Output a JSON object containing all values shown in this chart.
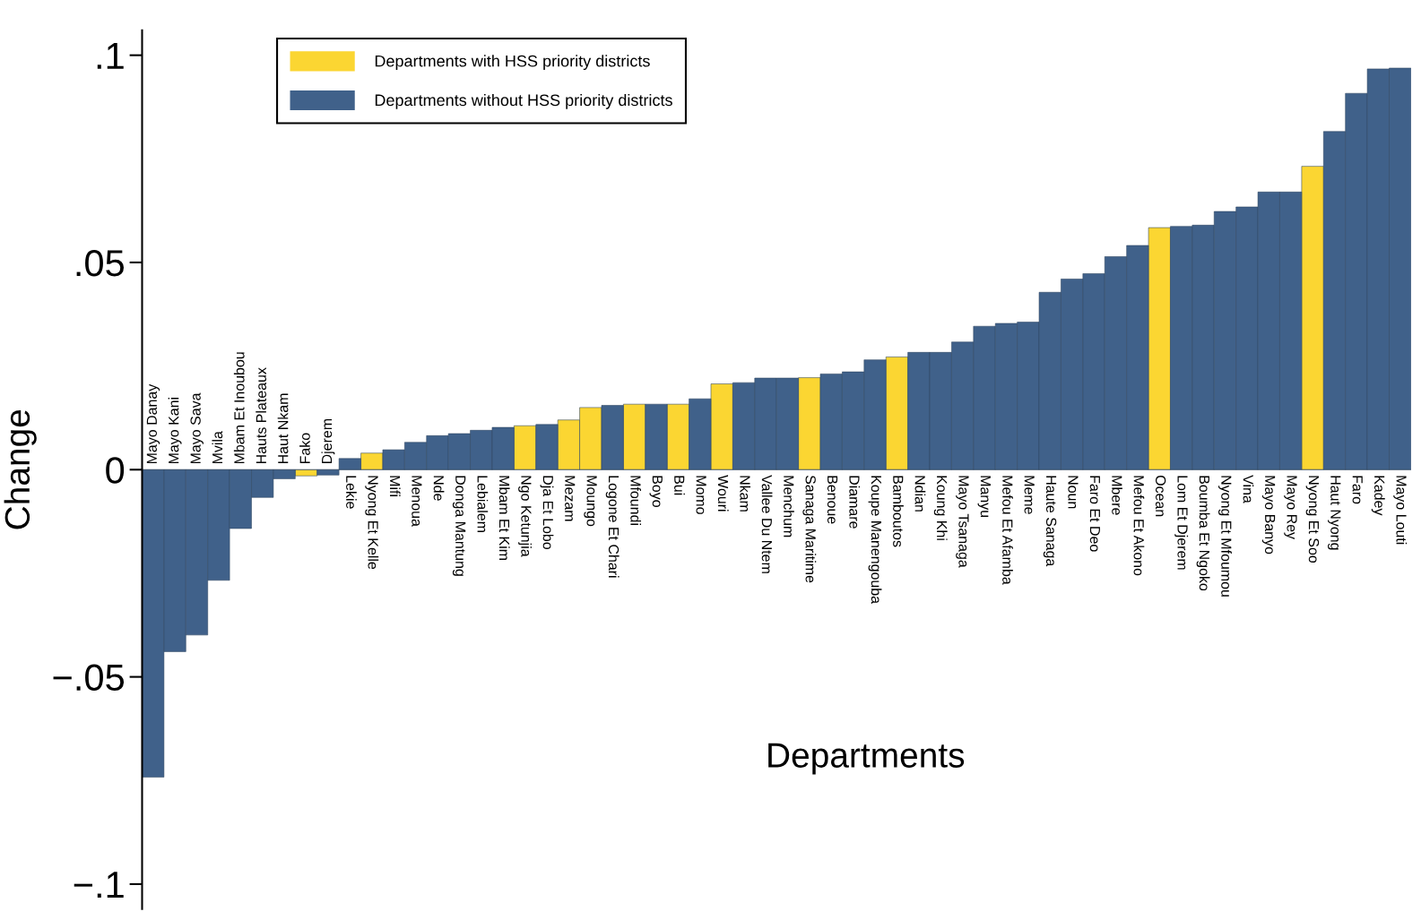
{
  "chart_data": {
    "type": "bar",
    "ylabel": "Change",
    "xlabel": "Departments",
    "categories": [
      "Mayo Danay",
      "Mayo Kani",
      "Mayo Sava",
      "Mvila",
      "Mbam Et Inoubou",
      "Hauts Plateaux",
      "Haut Nkam",
      "Fako",
      "Djerem",
      "Lekie",
      "Nyong Et Kelle",
      "Mifi",
      "Menoua",
      "Nde",
      "Donga Mantung",
      "Lebialem",
      "Mbam Et Kim",
      "Ngo Ketunjia",
      "Dja Et Lobo",
      "Mezam",
      "Moungo",
      "Logone Et Chari",
      "Mfoundi",
      "Boyo",
      "Bui",
      "Momo",
      "Wouri",
      "Nkam",
      "Vallee Du Ntem",
      "Menchum",
      "Sanaga Maritime",
      "Benoue",
      "Diamare",
      "Koupe Manengouba",
      "Bamboutos",
      "Ndian",
      "Koung Khi",
      "Mayo Tsanaga",
      "Manyu",
      "Mefou Et Afamba",
      "Meme",
      "Haute Sanaga",
      "Noun",
      "Faro Et Deo",
      "Mbere",
      "Mefou Et Akono",
      "Ocean",
      "Lom Et Djerem",
      "Boumba Et Ngoko",
      "Nyong Et Mfoumou",
      "Vina",
      "Mayo Banyo",
      "Mayo Rey",
      "Nyong Et Soo",
      "Haut Nyong",
      "Faro",
      "Kadey",
      "Mayo Louti"
    ],
    "series": [
      {
        "name": "Departments with HSS priority districts",
        "color": "#fbd632",
        "values": [
          null,
          null,
          null,
          null,
          null,
          null,
          null,
          -0.0015,
          null,
          null,
          0.004,
          null,
          null,
          null,
          null,
          null,
          null,
          0.0106,
          null,
          0.012,
          0.015,
          null,
          0.0158,
          null,
          0.0158,
          null,
          0.0207,
          null,
          null,
          null,
          0.0222,
          null,
          null,
          null,
          0.0272,
          null,
          null,
          null,
          null,
          null,
          null,
          null,
          null,
          null,
          null,
          null,
          0.0584,
          null,
          null,
          null,
          null,
          null,
          null,
          0.0732,
          null,
          null,
          null,
          null
        ]
      },
      {
        "name": "Departments without HSS priority districts",
        "color": "#40618a",
        "values": [
          -0.0742,
          -0.0439,
          -0.0399,
          -0.0267,
          -0.0142,
          -0.0067,
          -0.0022,
          null,
          -0.0013,
          0.0027,
          null,
          0.0048,
          0.0066,
          0.0082,
          0.0087,
          0.0095,
          0.0102,
          null,
          0.0109,
          null,
          null,
          0.0155,
          null,
          0.0158,
          null,
          0.0171,
          null,
          0.021,
          0.0221,
          0.0221,
          null,
          0.0231,
          0.0236,
          0.0265,
          null,
          0.0283,
          0.0283,
          0.0308,
          0.0346,
          0.0353,
          0.0356,
          0.0428,
          0.046,
          0.0473,
          0.0514,
          0.0541,
          null,
          0.0587,
          0.059,
          0.0623,
          0.0634,
          0.067,
          0.067,
          null,
          0.0816,
          0.0908,
          0.0967,
          0.0969
        ]
      }
    ],
    "ylim": [
      -0.106,
      0.106
    ],
    "yticks": [
      {
        "value": -0.1,
        "label": "−.1"
      },
      {
        "value": -0.05,
        "label": "−.05"
      },
      {
        "value": 0,
        "label": "0"
      },
      {
        "value": 0.05,
        "label": ".05"
      },
      {
        "value": 0.1,
        "label": ".1"
      }
    ],
    "grid": false,
    "legend": "top left"
  }
}
